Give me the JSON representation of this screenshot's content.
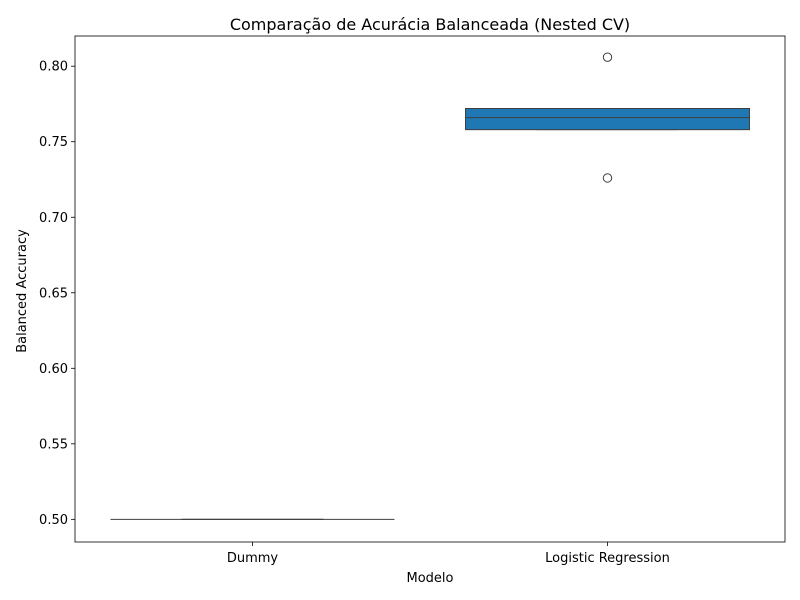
{
  "chart_data": {
    "type": "box",
    "title": "Comparação de Acurácia Balanceada (Nested CV)",
    "xlabel": "Modelo",
    "ylabel": "Balanced Accuracy",
    "categories": [
      "Dummy",
      "Logistic Regression"
    ],
    "ylim": [
      0.485,
      0.82
    ],
    "yticks": [
      0.5,
      0.55,
      0.6,
      0.65,
      0.7,
      0.75,
      0.8
    ],
    "ytick_labels": [
      "0.50",
      "0.55",
      "0.60",
      "0.65",
      "0.70",
      "0.75",
      "0.80"
    ],
    "grid": false,
    "boxes": [
      {
        "category": "Dummy",
        "min": 0.5,
        "q1": 0.5,
        "median": 0.5,
        "q3": 0.5,
        "max": 0.5,
        "outliers": [],
        "color": "#1f77b4"
      },
      {
        "category": "Logistic Regression",
        "min": 0.758,
        "q1": 0.758,
        "median": 0.766,
        "q3": 0.772,
        "max": 0.772,
        "outliers": [
          0.806,
          0.726
        ],
        "color": "#1f77b4"
      }
    ]
  }
}
